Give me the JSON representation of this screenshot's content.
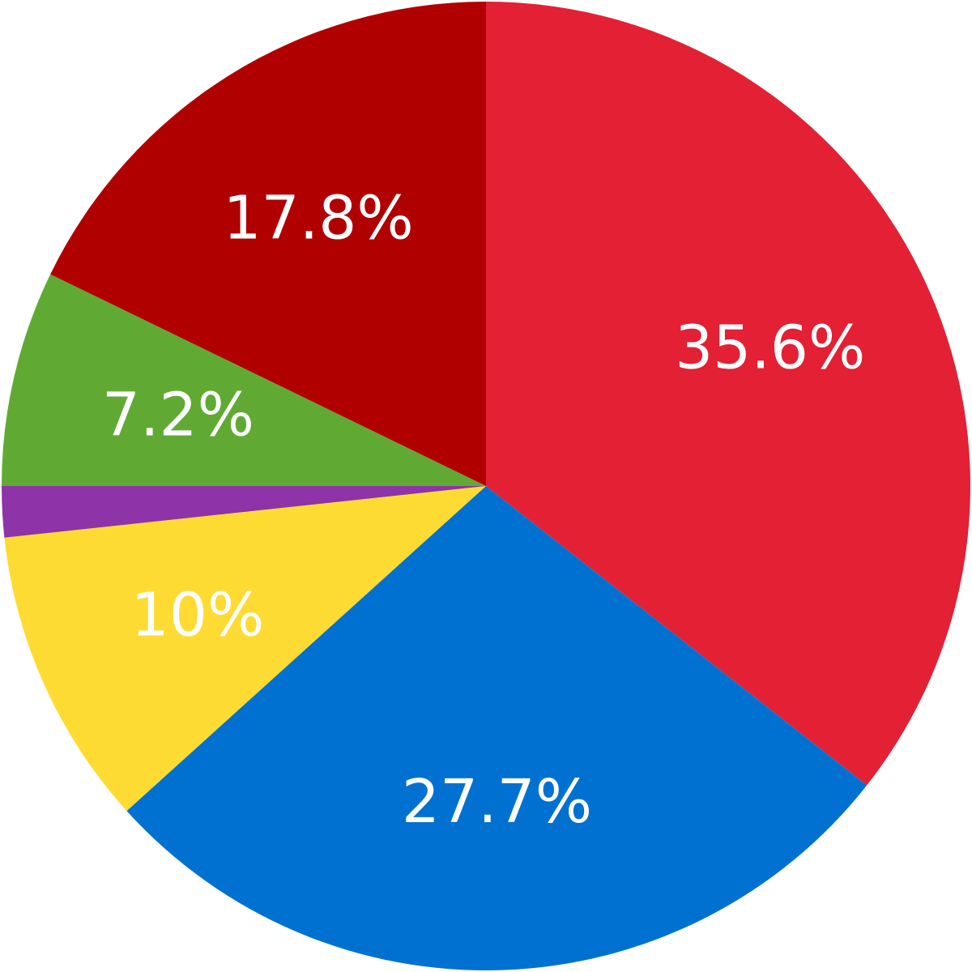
{
  "chart_data": {
    "type": "pie",
    "title": "",
    "start_angle_deg": 0,
    "direction": "clockwise",
    "slices": [
      {
        "value": 35.6,
        "label": "35.6%",
        "color": "#e32034"
      },
      {
        "value": 27.7,
        "label": "27.7%",
        "color": "#0071d1"
      },
      {
        "value": 10.0,
        "label": "10%",
        "color": "#fedb32"
      },
      {
        "value": 1.7,
        "label": "",
        "color": "#8f33a8"
      },
      {
        "value": 7.2,
        "label": "7.2%",
        "color": "#60aa34"
      },
      {
        "value": 17.8,
        "label": "17.8%",
        "color": "#b10000"
      }
    ]
  }
}
